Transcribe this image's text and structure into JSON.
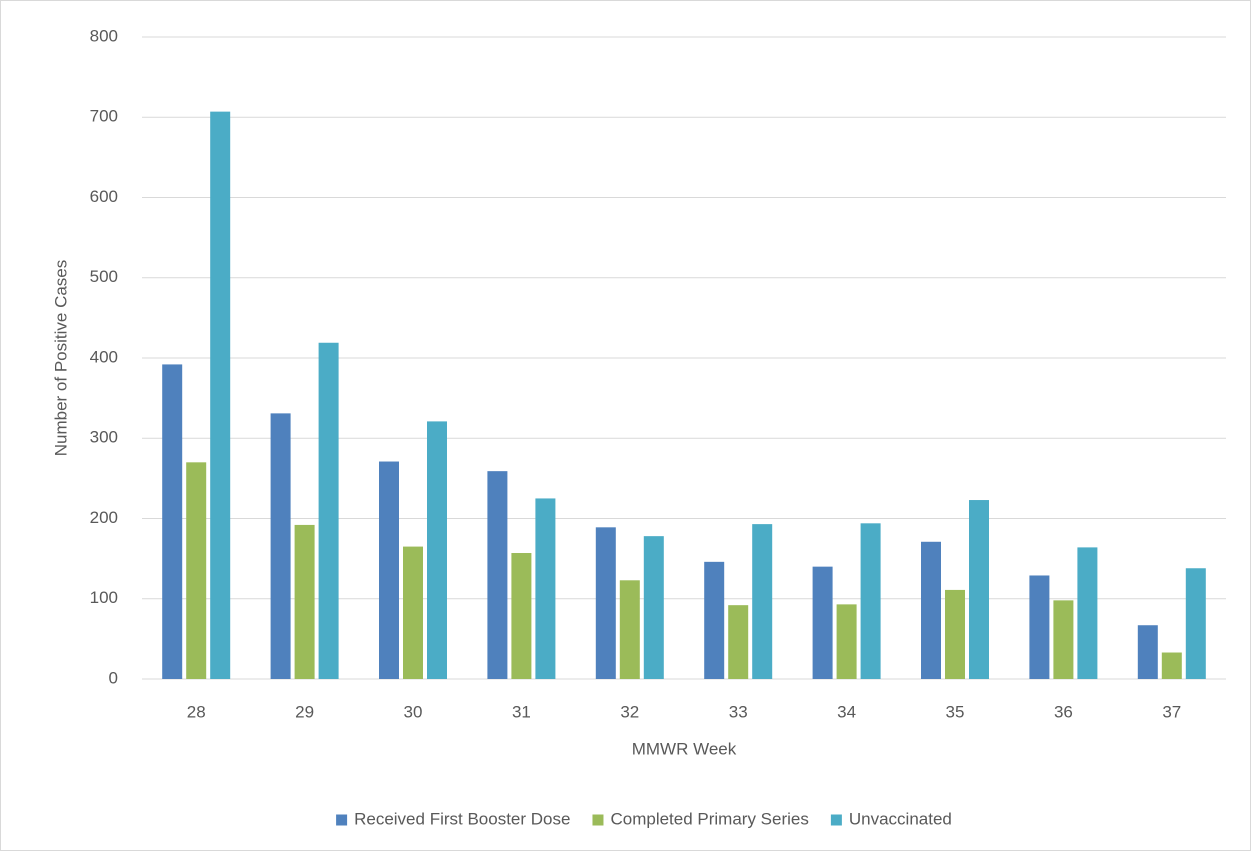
{
  "chart_data": {
    "type": "bar",
    "x_label": "MMWR Week",
    "y_label": "Number of Positive Cases",
    "categories": [
      "28",
      "29",
      "30",
      "31",
      "32",
      "33",
      "34",
      "35",
      "36",
      "37"
    ],
    "series": [
      {
        "name": "Received First Booster Dose",
        "color": "#4f81bd",
        "values": [
          392,
          331,
          271,
          259,
          189,
          146,
          140,
          171,
          129,
          67
        ]
      },
      {
        "name": "Completed Primary Series",
        "color": "#9bbb59",
        "values": [
          270,
          192,
          165,
          157,
          123,
          92,
          93,
          111,
          98,
          33
        ]
      },
      {
        "name": "Unvaccinated",
        "color": "#4bacc6",
        "values": [
          707,
          419,
          321,
          225,
          178,
          193,
          194,
          223,
          164,
          138
        ]
      }
    ],
    "ylim": [
      0,
      800
    ],
    "yticks": [
      0,
      100,
      200,
      300,
      400,
      500,
      600,
      700,
      800
    ],
    "grid": true,
    "legend": "bottom"
  }
}
